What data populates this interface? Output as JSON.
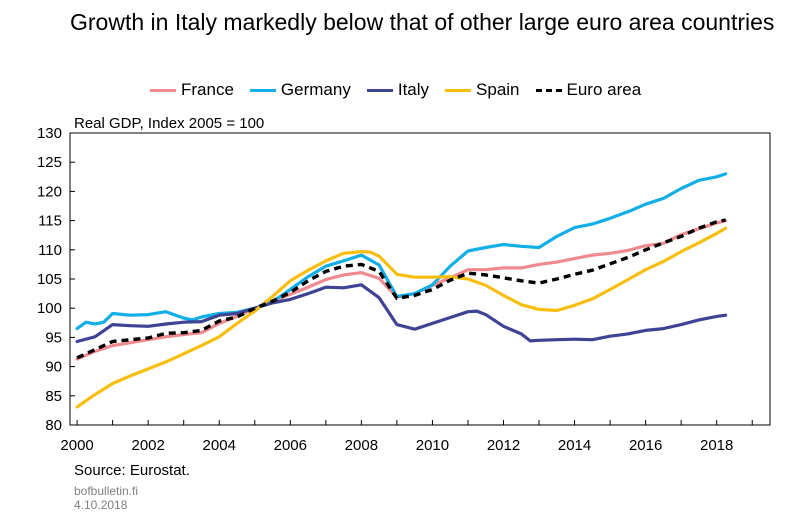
{
  "header": {
    "title": "Growth in Italy markedly below that of other large euro area countries"
  },
  "footer": {
    "source": "Source: Eurostat.",
    "site": "bofbulletin.fi",
    "date": "4.10.2018"
  },
  "chart_data": {
    "type": "line",
    "title": "Growth in Italy markedly below that of other large euro area countries",
    "ylabel": "Real GDP, Index 2005 = 100",
    "xlabel": "",
    "xlim": [
      1999.8,
      2019.5
    ],
    "ylim": [
      80,
      130
    ],
    "yticks": [
      80,
      85,
      90,
      95,
      100,
      105,
      110,
      115,
      120,
      125,
      130
    ],
    "xticks": [
      2000,
      2002,
      2004,
      2006,
      2008,
      2010,
      2012,
      2014,
      2016,
      2018
    ],
    "legend_position": "top",
    "grid": false,
    "series": [
      {
        "name": "France",
        "color": "#f08a8f",
        "dash": "solid",
        "x": [
          2000.0,
          2000.5,
          2001.0,
          2001.5,
          2002.0,
          2002.5,
          2003.0,
          2003.5,
          2004.0,
          2004.5,
          2005.0,
          2005.5,
          2006.0,
          2006.5,
          2007.0,
          2007.5,
          2008.0,
          2008.5,
          2009.0,
          2009.5,
          2010.0,
          2010.5,
          2011.0,
          2011.5,
          2012.0,
          2012.5,
          2013.0,
          2013.5,
          2014.0,
          2014.5,
          2015.0,
          2015.5,
          2016.0,
          2016.5,
          2017.0,
          2017.5,
          2018.0,
          2018.25
        ],
        "y": [
          91.3,
          92.6,
          93.6,
          94.1,
          94.6,
          95.1,
          95.5,
          95.8,
          97.4,
          98.6,
          100.0,
          101.1,
          102.4,
          103.6,
          104.9,
          105.7,
          106.1,
          105.1,
          101.9,
          102.5,
          103.9,
          105.2,
          106.6,
          106.6,
          106.9,
          106.9,
          107.5,
          107.9,
          108.5,
          109.1,
          109.4,
          109.9,
          110.7,
          111.1,
          112.6,
          113.6,
          114.6,
          115.0
        ]
      },
      {
        "name": "Germany",
        "color": "#12aee8",
        "dash": "solid",
        "x": [
          2000.0,
          2000.25,
          2000.5,
          2000.75,
          2001.0,
          2001.5,
          2002.0,
          2002.5,
          2003.0,
          2003.25,
          2003.5,
          2004.0,
          2004.5,
          2005.0,
          2005.5,
          2006.0,
          2006.5,
          2007.0,
          2007.5,
          2008.0,
          2008.5,
          2009.0,
          2009.5,
          2010.0,
          2010.5,
          2011.0,
          2011.5,
          2012.0,
          2012.5,
          2013.0,
          2013.5,
          2014.0,
          2014.5,
          2015.0,
          2015.5,
          2016.0,
          2016.5,
          2017.0,
          2017.5,
          2018.0,
          2018.25
        ],
        "y": [
          96.5,
          97.6,
          97.3,
          97.6,
          99.1,
          98.8,
          98.9,
          99.4,
          98.3,
          98.0,
          98.5,
          99.1,
          99.3,
          100.0,
          101.1,
          103.2,
          105.4,
          107.2,
          108.1,
          109.1,
          107.4,
          102.0,
          102.5,
          104.0,
          107.2,
          109.8,
          110.4,
          110.9,
          110.6,
          110.4,
          112.3,
          113.8,
          114.4,
          115.4,
          116.5,
          117.8,
          118.8,
          120.5,
          121.9,
          122.5,
          123.0
        ]
      },
      {
        "name": "Italy",
        "color": "#3f4394",
        "dash": "solid",
        "x": [
          2000.0,
          2000.5,
          2001.0,
          2001.5,
          2002.0,
          2002.5,
          2003.0,
          2003.5,
          2004.0,
          2004.5,
          2005.0,
          2005.5,
          2006.0,
          2006.5,
          2007.0,
          2007.5,
          2008.0,
          2008.5,
          2009.0,
          2009.5,
          2010.0,
          2010.5,
          2011.0,
          2011.25,
          2011.5,
          2012.0,
          2012.5,
          2012.75,
          2013.0,
          2013.5,
          2014.0,
          2014.5,
          2015.0,
          2015.5,
          2016.0,
          2016.5,
          2017.0,
          2017.5,
          2018.0,
          2018.25
        ],
        "y": [
          94.3,
          95.1,
          97.2,
          97.0,
          96.9,
          97.3,
          97.6,
          97.7,
          98.8,
          99.1,
          100.0,
          100.9,
          101.5,
          102.5,
          103.6,
          103.5,
          104.0,
          101.8,
          97.2,
          96.4,
          97.4,
          98.4,
          99.4,
          99.5,
          98.9,
          96.9,
          95.6,
          94.4,
          94.5,
          94.6,
          94.7,
          94.6,
          95.2,
          95.6,
          96.2,
          96.5,
          97.2,
          98.0,
          98.6,
          98.8
        ]
      },
      {
        "name": "Spain",
        "color": "#f7be0e",
        "dash": "solid",
        "x": [
          2000.0,
          2000.5,
          2001.0,
          2001.5,
          2002.0,
          2002.5,
          2003.0,
          2003.5,
          2004.0,
          2004.5,
          2005.0,
          2005.5,
          2006.0,
          2006.5,
          2007.0,
          2007.5,
          2008.0,
          2008.25,
          2008.5,
          2009.0,
          2009.5,
          2010.0,
          2010.5,
          2011.0,
          2011.5,
          2012.0,
          2012.5,
          2013.0,
          2013.5,
          2014.0,
          2014.5,
          2015.0,
          2015.5,
          2016.0,
          2016.5,
          2017.0,
          2017.5,
          2018.0,
          2018.25
        ],
        "y": [
          83.1,
          85.2,
          87.1,
          88.4,
          89.6,
          90.8,
          92.2,
          93.6,
          95.1,
          97.4,
          99.5,
          102.0,
          104.7,
          106.5,
          108.1,
          109.4,
          109.7,
          109.6,
          108.9,
          105.8,
          105.3,
          105.3,
          105.4,
          105.0,
          103.9,
          102.2,
          100.6,
          99.8,
          99.6,
          100.5,
          101.6,
          103.2,
          104.9,
          106.6,
          108.0,
          109.7,
          111.2,
          112.8,
          113.7
        ]
      },
      {
        "name": "Euro area",
        "color": "#000000",
        "dash": "dashed",
        "x": [
          2000.0,
          2000.5,
          2001.0,
          2001.5,
          2002.0,
          2002.5,
          2003.0,
          2003.5,
          2004.0,
          2004.5,
          2005.0,
          2005.5,
          2006.0,
          2006.5,
          2007.0,
          2007.5,
          2008.0,
          2008.5,
          2009.0,
          2009.5,
          2010.0,
          2010.5,
          2011.0,
          2011.5,
          2012.0,
          2012.5,
          2013.0,
          2013.5,
          2014.0,
          2014.5,
          2015.0,
          2015.5,
          2016.0,
          2016.5,
          2017.0,
          2017.5,
          2018.0,
          2018.25
        ],
        "y": [
          91.5,
          92.9,
          94.3,
          94.6,
          94.9,
          95.7,
          95.8,
          96.2,
          97.8,
          98.5,
          100.0,
          101.2,
          102.7,
          104.7,
          106.3,
          107.2,
          107.5,
          106.3,
          101.7,
          102.2,
          103.2,
          104.8,
          106.0,
          105.7,
          105.2,
          104.7,
          104.3,
          105.0,
          105.8,
          106.5,
          107.6,
          108.7,
          110.0,
          111.2,
          112.3,
          113.7,
          114.8,
          115.1
        ]
      }
    ]
  }
}
